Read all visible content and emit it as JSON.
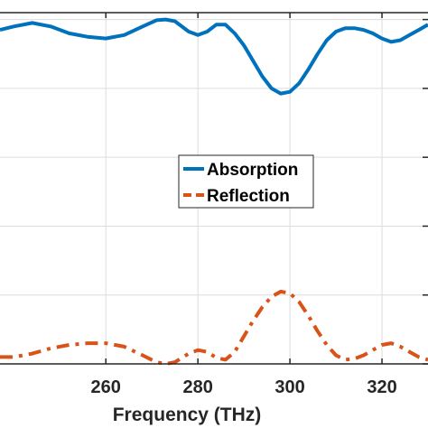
{
  "chart_data": {
    "type": "line",
    "xlabel": "Frequency (THz)",
    "ylabel": "",
    "xlim": [
      237,
      330
    ],
    "ylim": [
      0,
      1.02
    ],
    "x_ticks": [
      260,
      280,
      300,
      320
    ],
    "x_tick_labels": [
      "260",
      "280",
      "300",
      "320"
    ],
    "y_ticks": [
      0,
      0.2,
      0.4,
      0.6,
      0.8,
      1.0
    ],
    "grid": true,
    "legend_position": "center",
    "series": [
      {
        "name": "Absorption",
        "color": "#0072BD",
        "style": "solid",
        "x": [
          237,
          240,
          244,
          248,
          252,
          256,
          260,
          264,
          268,
          271,
          273,
          275,
          278,
          280,
          282,
          284,
          286,
          288,
          290,
          292,
          294,
          296,
          298,
          300,
          302,
          304,
          306,
          308,
          310,
          312,
          314,
          316,
          318,
          320,
          322,
          324,
          326,
          328,
          330
        ],
        "y": [
          0.97,
          0.98,
          0.99,
          0.98,
          0.96,
          0.95,
          0.945,
          0.955,
          0.98,
          0.998,
          1.0,
          0.995,
          0.965,
          0.955,
          0.965,
          0.985,
          0.985,
          0.96,
          0.925,
          0.88,
          0.835,
          0.8,
          0.785,
          0.79,
          0.815,
          0.855,
          0.9,
          0.94,
          0.965,
          0.975,
          0.975,
          0.97,
          0.96,
          0.945,
          0.935,
          0.94,
          0.955,
          0.97,
          0.985
        ]
      },
      {
        "name": "Reflection",
        "color": "#D95319",
        "style": "dashdot",
        "x": [
          237,
          240,
          244,
          248,
          252,
          256,
          260,
          264,
          268,
          271,
          273,
          275,
          278,
          280,
          282,
          284,
          286,
          288,
          290,
          292,
          294,
          296,
          298,
          300,
          302,
          304,
          306,
          308,
          310,
          312,
          314,
          316,
          318,
          320,
          322,
          324,
          326,
          328,
          330
        ],
        "y": [
          0.02,
          0.02,
          0.03,
          0.045,
          0.055,
          0.06,
          0.06,
          0.05,
          0.025,
          0.005,
          0.0,
          0.005,
          0.03,
          0.04,
          0.035,
          0.018,
          0.012,
          0.035,
          0.08,
          0.125,
          0.165,
          0.195,
          0.21,
          0.205,
          0.18,
          0.14,
          0.095,
          0.055,
          0.025,
          0.012,
          0.015,
          0.025,
          0.04,
          0.055,
          0.06,
          0.05,
          0.035,
          0.02,
          0.012
        ]
      }
    ]
  }
}
